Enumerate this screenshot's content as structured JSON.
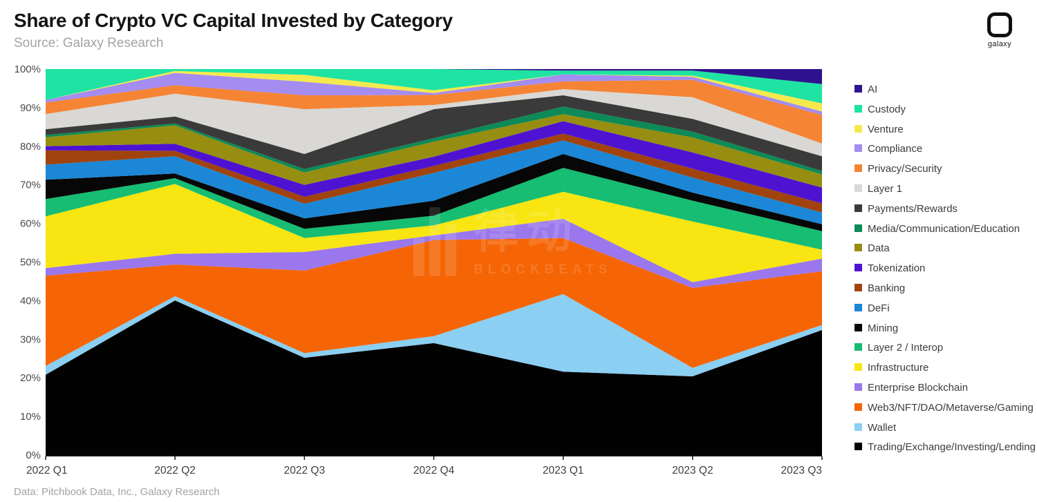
{
  "header": {
    "title": "Share of Crypto VC Capital Invested by Category",
    "source": "Source: Galaxy Research"
  },
  "branding": {
    "logo_text": "galaxy"
  },
  "watermark": {
    "cjk": "律动",
    "latin": "BLOCKBEATS"
  },
  "footer": {
    "text": "Data: Pitchbook Data, Inc., Galaxy Research"
  },
  "chart_data": {
    "type": "area",
    "stacked": true,
    "unit": "percent share",
    "title": "Share of Crypto VC Capital Invested by Category",
    "xlabel": "",
    "ylabel": "",
    "ylim": [
      0,
      100
    ],
    "grid": false,
    "legend_position": "right",
    "x_labels": [
      "2022 Q1",
      "2022 Q2",
      "2022 Q3",
      "2022 Q4",
      "2023 Q1",
      "2023 Q2",
      "2023 Q3"
    ],
    "y_ticks": [
      "0%",
      "10%",
      "20%",
      "30%",
      "40%",
      "50%",
      "60%",
      "70%",
      "80%",
      "90%",
      "100%"
    ],
    "series": [
      {
        "name": "AI",
        "color": "#2e128e",
        "values": [
          0,
          0,
          0,
          0,
          0.4,
          0.4,
          3.9
        ]
      },
      {
        "name": "Custody",
        "color": "#1fe3a2",
        "values": [
          8.0,
          0.5,
          1.5,
          5.5,
          1.0,
          1.3,
          5.0
        ]
      },
      {
        "name": "Venture",
        "color": "#f5e94d",
        "values": [
          0,
          0.5,
          1.8,
          0.7,
          0,
          0.3,
          2.1
        ]
      },
      {
        "name": "Compliance",
        "color": "#a48cf0",
        "values": [
          0.7,
          3.2,
          3.5,
          0.5,
          1.8,
          0.8,
          0.9
        ]
      },
      {
        "name": "Privacy/Security",
        "color": "#f58434",
        "values": [
          3.0,
          2.2,
          3.6,
          2.6,
          2.0,
          4.5,
          7.4
        ]
      },
      {
        "name": "Layer 1",
        "color": "#d9d8d4",
        "values": [
          3.9,
          5.9,
          11.6,
          1.1,
          1.6,
          5.6,
          3.3
        ]
      },
      {
        "name": "Payments/Rewards",
        "color": "#3a3a3a",
        "values": [
          1.5,
          1.8,
          3.9,
          7.5,
          2.9,
          3.3,
          3.8
        ]
      },
      {
        "name": "Media/Communication/Education",
        "color": "#0d8a57",
        "values": [
          0.6,
          0.5,
          0.9,
          0.9,
          2.0,
          1.5,
          0.9
        ]
      },
      {
        "name": "Data",
        "color": "#978d10",
        "values": [
          2.3,
          4.8,
          3.2,
          3.9,
          1.8,
          3.9,
          3.4
        ]
      },
      {
        "name": "Tokenization",
        "color": "#4d13d1",
        "values": [
          1.1,
          1.8,
          3.1,
          2.4,
          3.2,
          4.2,
          4.1
        ]
      },
      {
        "name": "Banking",
        "color": "#a0430e",
        "values": [
          3.7,
          1.4,
          1.8,
          1.8,
          1.8,
          2.3,
          2.4
        ]
      },
      {
        "name": "DeFi",
        "color": "#1b87d6",
        "values": [
          3.9,
          4.5,
          3.8,
          7.2,
          3.5,
          3.9,
          3.0
        ]
      },
      {
        "name": "Mining",
        "color": "#070707",
        "values": [
          5.0,
          1.2,
          2.7,
          3.9,
          3.6,
          2.1,
          1.8
        ]
      },
      {
        "name": "Layer 2 / Interop",
        "color": "#16bd72",
        "values": [
          4.5,
          1.5,
          2.4,
          2.5,
          6.2,
          5.4,
          4.8
        ]
      },
      {
        "name": "Infrastructure",
        "color": "#f8e511",
        "values": [
          13.4,
          18.1,
          3.6,
          2.6,
          7.0,
          15.7,
          2.3
        ]
      },
      {
        "name": "Enterprise Blockchain",
        "color": "#9a77ec",
        "values": [
          2.0,
          2.8,
          4.8,
          1.2,
          5.0,
          1.5,
          3.3
        ]
      },
      {
        "name": "Web3/NFT/DAO/Metaverse/Gaming",
        "color": "#f56505",
        "values": [
          23.4,
          8.2,
          21.4,
          24.9,
          14.5,
          20.7,
          13.9
        ]
      },
      {
        "name": "Wallet",
        "color": "#8bcff2",
        "values": [
          2.3,
          1.1,
          1.2,
          1.8,
          20.1,
          2.2,
          1.3
        ]
      },
      {
        "name": "Trading/Exchange/Investing/Lending",
        "color": "#020202",
        "values": [
          20.8,
          40.1,
          25.2,
          29.0,
          21.6,
          20.4,
          32.4
        ]
      }
    ]
  }
}
